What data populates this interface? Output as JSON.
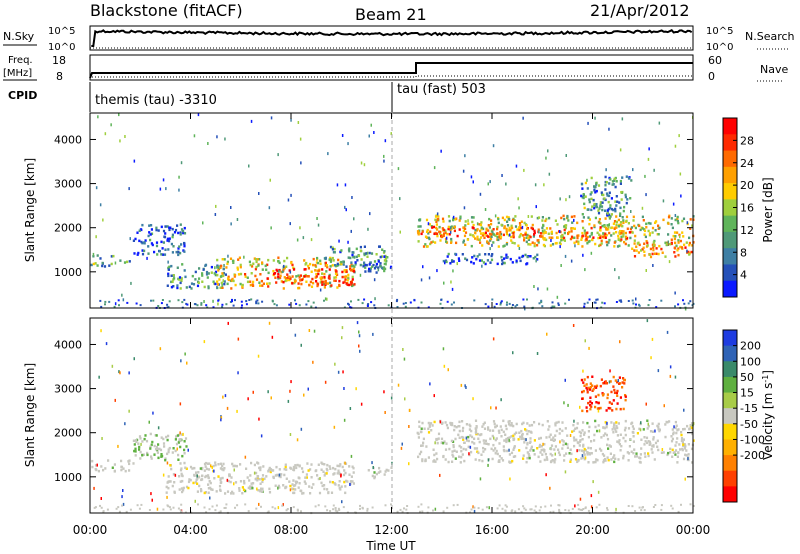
{
  "header": {
    "title": "Blackstone (fitACF)",
    "beam": "Beam 21",
    "date": "21/Apr/2012"
  },
  "strip": {
    "nsky_label": "N.Sky",
    "nsearch_label": "N.Search",
    "freq_label": "Freq.",
    "freq_unit": "[MHz]",
    "nave_label": "Nave",
    "cpid_label": "CPID",
    "nsky_ticks": [
      "10^5",
      "10^0"
    ],
    "nsearch_ticks": [
      "10^5",
      "10^0"
    ],
    "freq_ticks": [
      "18",
      "8"
    ],
    "nave_ticks": [
      "60",
      "0"
    ],
    "cpid_segments": [
      {
        "start_hour": 0,
        "label": "themis (tau) -3310"
      },
      {
        "start_hour": 12.9,
        "label": "tau (fast) 503"
      }
    ]
  },
  "time_axis": {
    "xlabel": "Time UT",
    "ticks": [
      "00:00",
      "04:00",
      "08:00",
      "12:00",
      "16:00",
      "20:00",
      "00:00"
    ],
    "tick_hours": [
      0,
      4,
      8,
      12,
      16,
      20,
      24
    ],
    "xlim": [
      0,
      24
    ]
  },
  "colors": {
    "power": [
      "#0a1aff",
      "#2450b8",
      "#3e7fa4",
      "#4f9978",
      "#5fb45a",
      "#9fcf3d",
      "#ffcc00",
      "#ffa000",
      "#ff6a00",
      "#ff2a00",
      "#ff0000"
    ],
    "velocity_pos": [
      "#1e3ce0",
      "#2f63b6",
      "#3a8a6a",
      "#5fb040",
      "#a8cc48"
    ],
    "velocity_zero": "#c8c8c0",
    "velocity_neg": [
      "#ffd700",
      "#ffb000",
      "#ff8000",
      "#ff4000",
      "#ff0000"
    ]
  },
  "chart_data": [
    {
      "type": "heatmap",
      "name": "power",
      "ylabel": "Slant Range [km]",
      "ylim": [
        180,
        4600
      ],
      "yticks": [
        1000,
        2000,
        3000,
        4000
      ],
      "colorbar_label": "Power [dB]",
      "colorbar_ticks": [
        4,
        8,
        12,
        16,
        20,
        24,
        28
      ],
      "colorbar_range": [
        0,
        32
      ],
      "scatter_regions": [
        {
          "t0": 0.0,
          "t1": 1.7,
          "r0": 1150,
          "r1": 1400,
          "level": 0.35
        },
        {
          "t0": 1.7,
          "t1": 3.8,
          "r0": 1400,
          "r1": 2100,
          "level": 0.15
        },
        {
          "t0": 3.0,
          "t1": 5.5,
          "r0": 650,
          "r1": 1200,
          "level": 0.3
        },
        {
          "t0": 5.0,
          "t1": 10.5,
          "r0": 650,
          "r1": 1350,
          "level": 0.6
        },
        {
          "t0": 7.0,
          "t1": 10.5,
          "r0": 700,
          "r1": 1100,
          "level": 0.85
        },
        {
          "t0": 9.3,
          "t1": 11.8,
          "r0": 1100,
          "r1": 1600,
          "level": 0.3
        },
        {
          "t0": 10.8,
          "t1": 12.0,
          "r0": 1000,
          "r1": 1250,
          "level": 0.2
        },
        {
          "t0": 13.0,
          "t1": 24.0,
          "r0": 1600,
          "r1": 2300,
          "level": 0.55
        },
        {
          "t0": 13.0,
          "t1": 17.0,
          "r0": 1800,
          "r1": 2050,
          "level": 0.75
        },
        {
          "t0": 17.0,
          "t1": 21.5,
          "r0": 1750,
          "r1": 2050,
          "level": 0.72
        },
        {
          "t0": 21.5,
          "t1": 24.0,
          "r0": 1350,
          "r1": 1700,
          "level": 0.7
        },
        {
          "t0": 14.0,
          "t1": 18.0,
          "r0": 1200,
          "r1": 1450,
          "level": 0.2
        },
        {
          "t0": 19.5,
          "t1": 21.5,
          "r0": 2300,
          "r1": 3200,
          "level": 0.3
        }
      ]
    },
    {
      "type": "heatmap",
      "name": "velocity",
      "ylabel": "Slant Range [km]",
      "ylim": [
        180,
        4600
      ],
      "yticks": [
        1000,
        2000,
        3000,
        4000
      ],
      "colorbar_label": "Velocity [m s^-1]",
      "colorbar_ticks": [
        "200",
        "100",
        "50",
        "15",
        "-15",
        "-50",
        "-100",
        "-200"
      ],
      "scatter_regions": [
        {
          "t0": 0.0,
          "t1": 1.7,
          "r0": 1150,
          "r1": 1400,
          "kind": "ground"
        },
        {
          "t0": 3.0,
          "t1": 10.5,
          "r0": 650,
          "r1": 1350,
          "kind": "ground"
        },
        {
          "t0": 10.8,
          "t1": 12.0,
          "r0": 1000,
          "r1": 1250,
          "kind": "ground"
        },
        {
          "t0": 13.0,
          "t1": 24.0,
          "r0": 1350,
          "r1": 2300,
          "kind": "ground"
        },
        {
          "t0": 19.5,
          "t1": 21.3,
          "r0": 2500,
          "r1": 3300,
          "kind": "negative"
        },
        {
          "t0": 1.7,
          "t1": 3.8,
          "r0": 1400,
          "r1": 2000,
          "kind": "mixed"
        }
      ]
    }
  ]
}
